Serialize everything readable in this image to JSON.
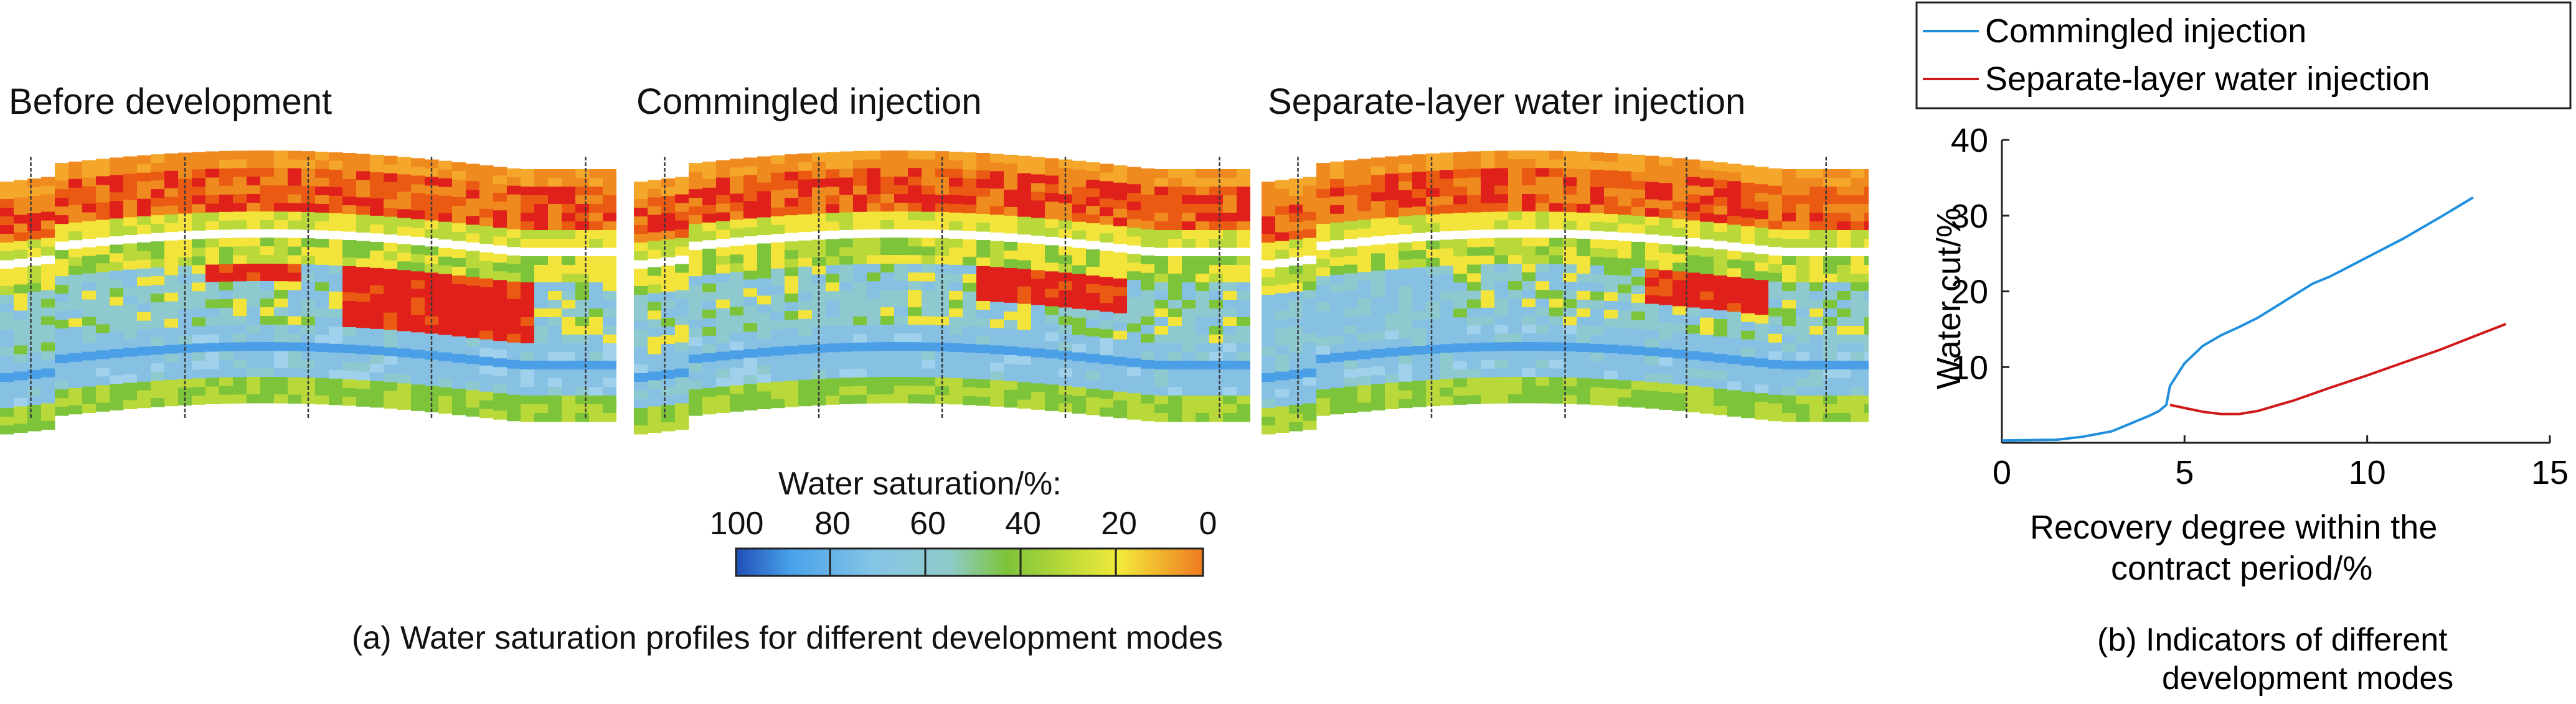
{
  "panel_a": {
    "titles": [
      "Before development",
      "Commingled injection",
      "Separate-layer water injection"
    ],
    "caption": "(a) Water saturation profiles for different development modes",
    "colorbar": {
      "label": "Water saturation/%:",
      "ticks": [
        "100",
        "80",
        "60",
        "40",
        "20",
        "0"
      ],
      "colors": [
        "#1f5bbf",
        "#5fb8ee",
        "#8ec9dc",
        "#7dc43a",
        "#f2ea3a",
        "#ef8a1f"
      ]
    }
  },
  "panel_b": {
    "caption_line1": "(b) Indicators of different",
    "caption_line2": "development modes"
  },
  "chart_data": {
    "type": "line",
    "title": "",
    "xlabel_line1": "Recovery degree within the",
    "xlabel_line2": "contract period/%",
    "ylabel": "Water cut/%",
    "xlim": [
      0,
      15
    ],
    "ylim": [
      0,
      40
    ],
    "xticks": [
      "0",
      "5",
      "10",
      "15"
    ],
    "yticks": [
      "10",
      "20",
      "30",
      "40"
    ],
    "legend_position": "top",
    "series": [
      {
        "name": "Commingled injection",
        "color": "#1f8fde",
        "x": [
          0,
          1.5,
          2.2,
          3.0,
          3.5,
          4.0,
          4.3,
          4.5,
          4.6,
          5.0,
          5.5,
          6.0,
          6.5,
          7.0,
          7.5,
          8.0,
          8.5,
          9.0,
          10.0,
          11.0,
          12.0,
          12.9
        ],
        "y": [
          0.3,
          0.4,
          0.8,
          1.5,
          2.5,
          3.5,
          4.2,
          5.0,
          7.5,
          10.5,
          12.8,
          14.2,
          15.3,
          16.5,
          18.0,
          19.5,
          21.0,
          22.0,
          24.5,
          27.0,
          29.8,
          32.4
        ]
      },
      {
        "name": "Separate-layer water injection",
        "color": "#d01818",
        "x": [
          4.6,
          5.0,
          5.5,
          6.0,
          6.5,
          7.0,
          7.5,
          8.0,
          9.0,
          10.0,
          11.0,
          12.0,
          13.0,
          13.8
        ],
        "y": [
          5.0,
          4.6,
          4.1,
          3.8,
          3.8,
          4.2,
          4.9,
          5.6,
          7.3,
          8.9,
          10.6,
          12.3,
          14.2,
          15.7
        ]
      }
    ]
  }
}
